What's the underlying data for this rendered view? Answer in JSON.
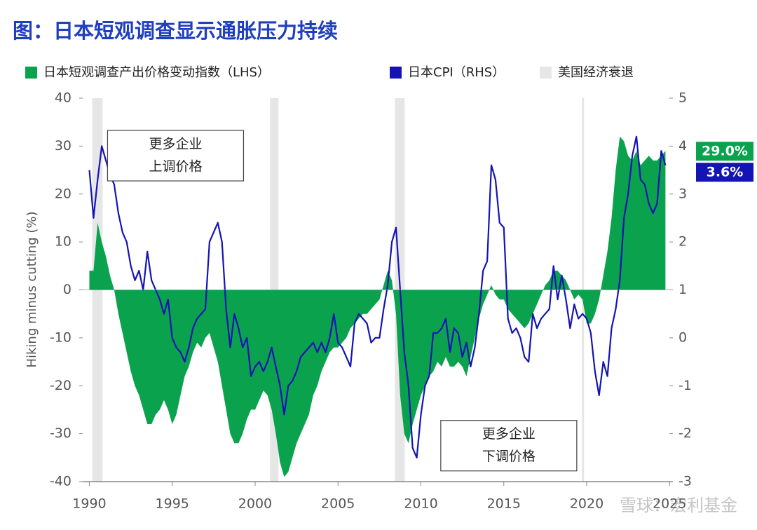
{
  "chart_data": {
    "type": "area-line",
    "title": "图：日本短观调查显示通胀压力持续",
    "y_label": "Hiking minus cutting (%)",
    "watermark": "雪球：宏利基金",
    "xlim": [
      1989.6,
      2025.2
    ],
    "xticks": [
      1990,
      1995,
      2000,
      2005,
      2010,
      2015,
      2020,
      2025
    ],
    "ylim": [
      -40,
      40
    ],
    "yticks": [
      -40,
      -30,
      -20,
      -10,
      0,
      10,
      20,
      30,
      40
    ],
    "y2lim": [
      -3,
      5
    ],
    "y2ticks": [
      -3,
      -2,
      -1,
      0,
      1,
      2,
      3,
      4,
      5
    ],
    "recession_name": "美国经济衰退",
    "recession_color": "#e6e6e6",
    "recessions": [
      [
        1990.17,
        1990.8
      ],
      [
        2000.9,
        2001.41
      ],
      [
        2008.43,
        2009.02
      ],
      [
        2019.71,
        2019.84
      ]
    ],
    "annotations": [
      {
        "lines": [
          "更多企业",
          "上调价格"
        ],
        "x": 1995.2,
        "y": 28
      },
      {
        "lines": [
          "更多企业",
          "下调价格"
        ],
        "x": 2015.3,
        "y": -32.5
      }
    ],
    "x": [
      1990,
      1990.25,
      1990.5,
      1990.75,
      1991,
      1991.25,
      1991.5,
      1991.75,
      1992,
      1992.25,
      1992.5,
      1992.75,
      1993,
      1993.25,
      1993.5,
      1993.75,
      1994,
      1994.25,
      1994.5,
      1994.75,
      1995,
      1995.25,
      1995.5,
      1995.75,
      1996,
      1996.25,
      1996.5,
      1996.75,
      1997,
      1997.25,
      1997.5,
      1997.75,
      1998,
      1998.25,
      1998.5,
      1998.75,
      1999,
      1999.25,
      1999.5,
      1999.75,
      2000,
      2000.25,
      2000.5,
      2000.75,
      2001,
      2001.25,
      2001.5,
      2001.75,
      2002,
      2002.25,
      2002.5,
      2002.75,
      2003,
      2003.25,
      2003.5,
      2003.75,
      2004,
      2004.25,
      2004.5,
      2004.75,
      2005,
      2005.25,
      2005.5,
      2005.75,
      2006,
      2006.25,
      2006.5,
      2006.75,
      2007,
      2007.25,
      2007.5,
      2007.75,
      2008,
      2008.25,
      2008.5,
      2008.75,
      2009,
      2009.25,
      2009.5,
      2009.75,
      2010,
      2010.25,
      2010.5,
      2010.75,
      2011,
      2011.25,
      2011.5,
      2011.75,
      2012,
      2012.25,
      2012.5,
      2012.75,
      2013,
      2013.25,
      2013.5,
      2013.75,
      2014,
      2014.25,
      2014.5,
      2014.75,
      2015,
      2015.25,
      2015.5,
      2015.75,
      2016,
      2016.25,
      2016.5,
      2016.75,
      2017,
      2017.25,
      2017.5,
      2017.75,
      2018,
      2018.25,
      2018.5,
      2018.75,
      2019,
      2019.25,
      2019.5,
      2019.75,
      2020,
      2020.25,
      2020.5,
      2020.75,
      2021,
      2021.25,
      2021.5,
      2021.75,
      2022,
      2022.25,
      2022.5,
      2022.75,
      2023,
      2023.25,
      2023.5,
      2023.75,
      2024,
      2024.25,
      2024.5,
      2024.75
    ],
    "series": [
      {
        "name": "日本短观调查产出价格变动指数（LHS）",
        "kind": "area",
        "color": "#0ba24e",
        "end_label": "29.0%",
        "values": [
          4,
          4,
          14,
          10,
          7,
          3,
          0,
          -5,
          -9,
          -13,
          -17,
          -20,
          -22,
          -25,
          -28,
          -28,
          -26,
          -25,
          -23,
          -25,
          -28,
          -26,
          -22,
          -18,
          -16,
          -13,
          -11,
          -12,
          -10,
          -9,
          -12,
          -15,
          -20,
          -25,
          -30,
          -32,
          -32,
          -30,
          -27,
          -25,
          -25,
          -23,
          -21,
          -22,
          -25,
          -30,
          -36,
          -39,
          -38,
          -35,
          -32,
          -30,
          -28,
          -26,
          -22,
          -20,
          -17,
          -15,
          -13,
          -12,
          -12,
          -11,
          -10,
          -8,
          -7,
          -6,
          -5,
          -5,
          -4,
          -3,
          -2,
          1,
          4,
          2,
          -5,
          -22,
          -30,
          -32,
          -28,
          -25,
          -22,
          -20,
          -18,
          -17,
          -15,
          -16,
          -14,
          -16,
          -16,
          -15,
          -16,
          -18,
          -14,
          -10,
          -6,
          -3,
          -1,
          1,
          -1,
          -2,
          -2,
          -4,
          -5,
          -6,
          -7,
          -8,
          -7,
          -5,
          -3,
          -1,
          1,
          2,
          4,
          4,
          3,
          2,
          0,
          -2,
          -1,
          -2,
          -7,
          -7,
          -5,
          -2,
          3,
          8,
          15,
          25,
          32,
          31,
          28,
          27,
          29,
          26,
          27,
          28,
          27,
          27,
          28,
          29
        ]
      },
      {
        "name": "日本CPI（RHS）",
        "kind": "line",
        "axis": "y2",
        "color": "#1414b4",
        "end_label": "3.6%",
        "values": [
          3.5,
          2.5,
          3.3,
          4.0,
          3.7,
          3.4,
          3.2,
          2.6,
          2.2,
          2.0,
          1.5,
          1.2,
          1.4,
          1.0,
          1.8,
          1.2,
          1.0,
          0.8,
          0.5,
          0.8,
          0.0,
          -0.2,
          -0.3,
          -0.5,
          -0.2,
          0.2,
          0.4,
          0.5,
          0.6,
          2.0,
          2.2,
          2.4,
          2.0,
          0.6,
          -0.2,
          0.5,
          0.2,
          -0.2,
          0.0,
          -0.8,
          -0.6,
          -0.5,
          -0.7,
          -0.5,
          -0.2,
          -0.6,
          -1.0,
          -1.6,
          -1.0,
          -0.9,
          -0.7,
          -0.4,
          -0.3,
          -0.2,
          -0.1,
          -0.3,
          -0.1,
          -0.3,
          0.0,
          0.5,
          -0.1,
          -0.2,
          -0.4,
          -0.6,
          0.3,
          0.5,
          0.4,
          0.3,
          -0.1,
          0.0,
          0.0,
          0.6,
          1.1,
          2.0,
          2.3,
          1.0,
          -0.3,
          -1.0,
          -2.3,
          -2.5,
          -1.6,
          -1.0,
          -0.8,
          0.1,
          0.1,
          0.2,
          0.4,
          -0.3,
          0.2,
          0.1,
          -0.4,
          -0.1,
          -0.6,
          -0.2,
          0.5,
          1.4,
          1.6,
          3.6,
          3.3,
          2.4,
          2.3,
          0.4,
          0.1,
          0.2,
          0.0,
          -0.4,
          -0.5,
          0.5,
          0.2,
          0.4,
          0.5,
          0.6,
          1.5,
          0.8,
          1.3,
          0.8,
          0.2,
          0.7,
          0.4,
          0.5,
          0.4,
          0.1,
          -0.7,
          -1.2,
          -0.5,
          -0.8,
          0.2,
          0.6,
          1.2,
          2.5,
          3.0,
          3.8,
          4.2,
          3.3,
          3.2,
          2.8,
          2.6,
          2.8,
          3.9,
          3.6
        ]
      }
    ]
  }
}
